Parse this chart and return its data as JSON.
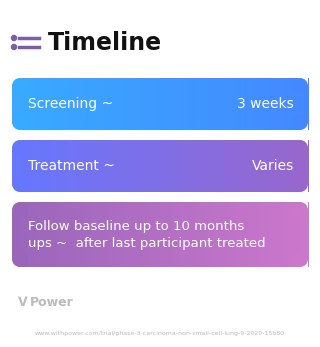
{
  "title": "Timeline",
  "title_icon_color": "#7B5EA7",
  "title_fontsize": 17,
  "title_fontweight": "bold",
  "title_color": "#111111",
  "background_color": "#ffffff",
  "boxes": [
    {
      "label_left": "Screening ~",
      "label_right": "3 weeks",
      "color_left": "#38AAFF",
      "color_right": "#4488FF",
      "multiline": false,
      "fontsize": 10,
      "text_color": "#ffffff"
    },
    {
      "label_left": "Treatment ~",
      "label_right": "Varies",
      "color_left": "#6677FF",
      "color_right": "#9966CC",
      "multiline": false,
      "fontsize": 10,
      "text_color": "#ffffff"
    },
    {
      "label_left": "Follow baseline up to 10 months\nups ~  after last participant treated",
      "label_right": "",
      "color_left": "#9966BB",
      "color_right": "#CC77CC",
      "multiline": true,
      "fontsize": 9.5,
      "text_color": "#ffffff"
    }
  ],
  "watermark_text": "Power",
  "watermark_color": "#bbbbbb",
  "url_text": "www.withpower.com/trial/phase-3-carcinoma-non-small-cell-lung-9-2020-15b80",
  "url_color": "#bbbbbb",
  "url_fontsize": 4.5
}
